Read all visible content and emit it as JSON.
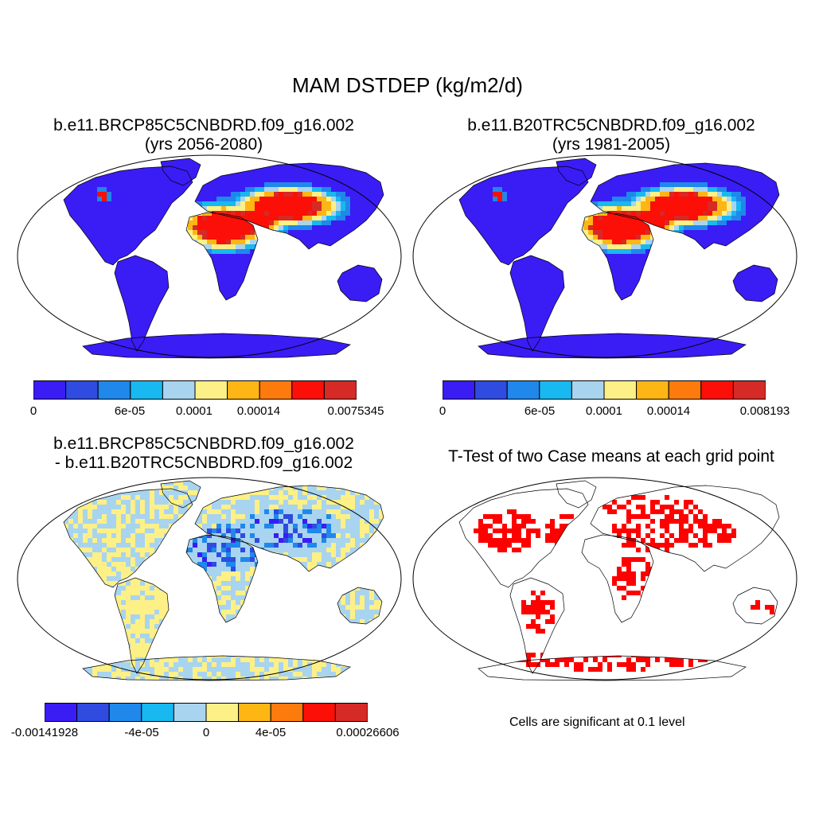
{
  "figure": {
    "title": "MAM DSTDEP (kg/m2/d)",
    "panels": [
      {
        "title_line1": "b.e11.BRCP85C5CNBDRD.f09_g16.002",
        "title_line2": "(yrs 2056-2080)",
        "colorbar_labels": [
          "0",
          "6e-05",
          "0.0001",
          "0.00014",
          "0.0075345"
        ]
      },
      {
        "title_line1": "b.e11.B20TRC5CNBDRD.f09_g16.002",
        "title_line2": "(yrs 1981-2005)",
        "colorbar_labels": [
          "0",
          "6e-05",
          "0.0001",
          "0.00014",
          "0.008193"
        ]
      },
      {
        "title_line1": "b.e11.BRCP85C5CNBDRD.f09_g16.002",
        "title_line2": "- b.e11.B20TRC5CNBDRD.f09_g16.002",
        "colorbar_labels": [
          "-0.00141928",
          "-4e-05",
          "0",
          "4e-05",
          "0.00026606"
        ]
      },
      {
        "title_line1": "T-Test of two Case means at each grid point",
        "note": "Cells are significant at 0.1 level"
      }
    ]
  },
  "colors": {
    "palette": [
      "#3a1cf5",
      "#2f4be0",
      "#1f88ea",
      "#18b8f0",
      "#a8d4f0",
      "#fdf086",
      "#fdb614",
      "#fd7a0c",
      "#fb0f07",
      "#d62a26"
    ],
    "ocean": "#ffffff",
    "coast": "#000000",
    "significant": "#ff0000"
  }
}
